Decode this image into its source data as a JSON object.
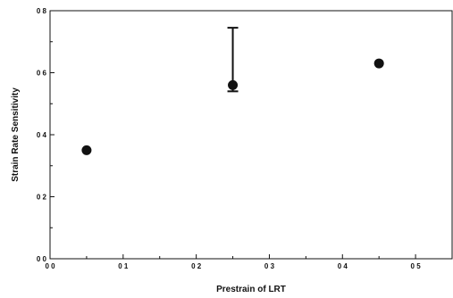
{
  "chart_data": {
    "type": "scatter",
    "title": "",
    "xlabel": "Prestrain of LRT",
    "ylabel": "Strain Rate Sensitivity",
    "xlim": [
      0.0,
      0.55
    ],
    "ylim": [
      0.0,
      0.8
    ],
    "xticks": [
      0.0,
      0.1,
      0.2,
      0.3,
      0.4,
      0.5
    ],
    "xtick_labels": [
      "0 0",
      "0 1",
      "0 2",
      "0 3",
      "0 4",
      "0 5"
    ],
    "yticks": [
      0.0,
      0.2,
      0.4,
      0.6,
      0.8
    ],
    "ytick_labels": [
      "0 0",
      "0 2",
      "0 4",
      "0 6",
      "0 8"
    ],
    "grid": false,
    "legend": "none",
    "marker_color": "#111111",
    "series": [
      {
        "points": [
          {
            "x": 0.05,
            "y": 0.35
          },
          {
            "x": 0.25,
            "y": 0.56,
            "err_low": 0.54,
            "err_high": 0.745
          },
          {
            "x": 0.45,
            "y": 0.63
          }
        ]
      }
    ]
  }
}
